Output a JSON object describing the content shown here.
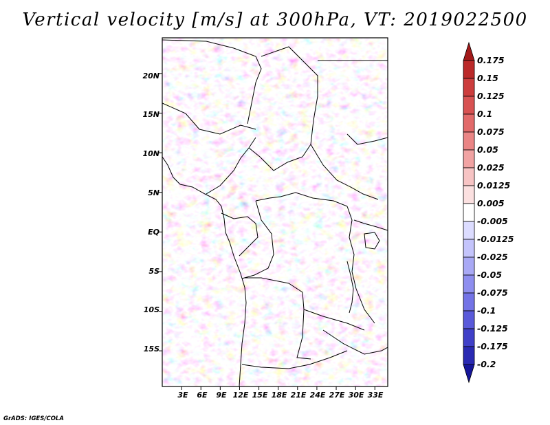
{
  "title": "Vertical velocity [m/s] at 300hPa, VT: 2019022500",
  "map": {
    "y_axis_labels": [
      "20N",
      "15N",
      "10N",
      "5N",
      "EQ",
      "5S",
      "10S",
      "15S"
    ],
    "x_axis_labels": [
      "3E",
      "6E",
      "9E",
      "12E",
      "15E",
      "18E",
      "21E",
      "24E",
      "27E",
      "30E",
      "33E"
    ],
    "lon_range": [
      0,
      35
    ],
    "lat_range": [
      -19.5,
      24.5
    ]
  },
  "colorbar": {
    "labels": [
      "0.175",
      "0.15",
      "0.125",
      "0.1",
      "0.075",
      "0.05",
      "0.025",
      "0.0125",
      "0.005",
      "-0.005",
      "-0.0125",
      "-0.025",
      "-0.05",
      "-0.075",
      "-0.1",
      "-0.125",
      "-0.175",
      "-0.2"
    ],
    "colors": [
      "#a31a1a",
      "#bb2a2a",
      "#cc3d3d",
      "#d85252",
      "#e26a6a",
      "#ea8585",
      "#f1a3a3",
      "#f7c4c4",
      "#fbe0e0",
      "#ffffff",
      "#dcdcff",
      "#c4c4fb",
      "#a9a9f5",
      "#8e8eef",
      "#7373e6",
      "#5a5ada",
      "#4040c8",
      "#2a2ab3",
      "#16169a"
    ]
  },
  "credit": "GrADS: IGES/COLA"
}
